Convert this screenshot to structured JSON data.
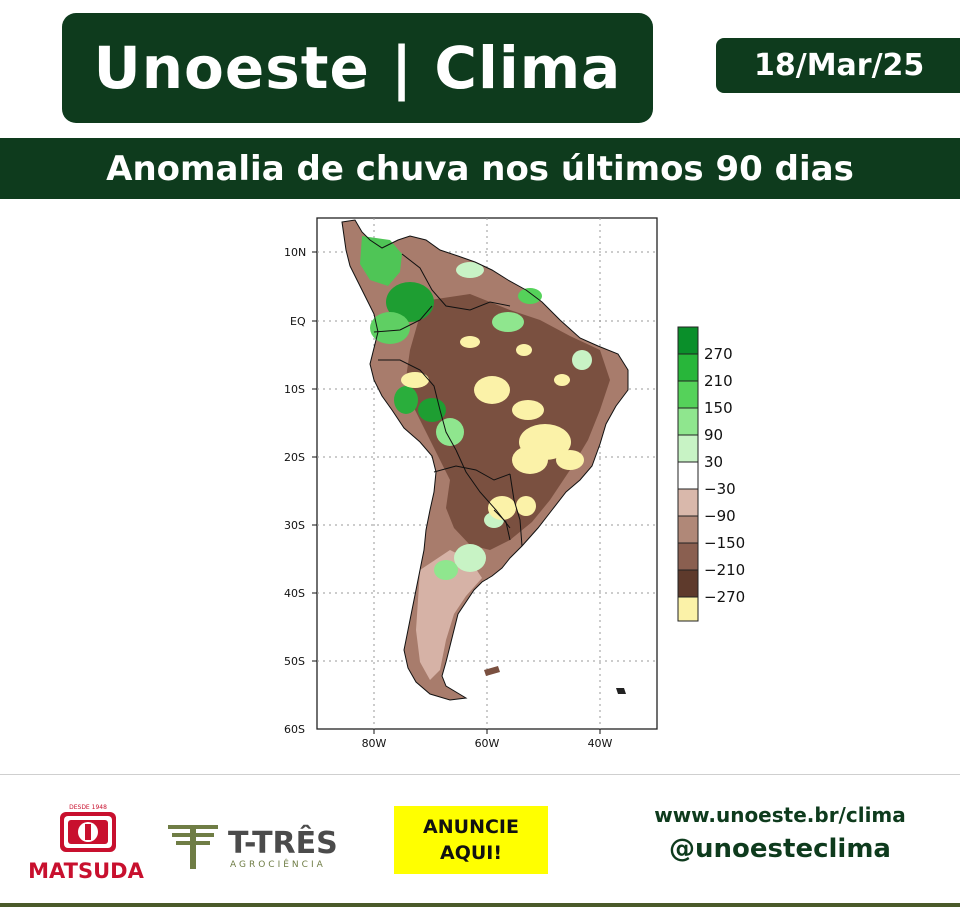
{
  "header": {
    "title": "Unoeste | Clima",
    "date": "18/Mar/25",
    "subtitle": "Anomalia de chuva nos últimos 90 dias"
  },
  "map": {
    "lat_labels": [
      "10N",
      "EQ",
      "10S",
      "20S",
      "30S",
      "40S",
      "50S",
      "60S"
    ],
    "lon_labels": [
      "80W",
      "60W",
      "40W"
    ],
    "legend": {
      "labels": [
        "270",
        "210",
        "150",
        "90",
        "30",
        "−30",
        "−90",
        "−150",
        "−210",
        "−270"
      ],
      "colors": [
        "#0a8f2a",
        "#28b63a",
        "#55d25a",
        "#8fe68e",
        "#c8f3c5",
        "#ffffff",
        "#d9b8ab",
        "#b08878",
        "#8a5f50",
        "#5e3a2c",
        "#fbf2a8"
      ]
    }
  },
  "footer": {
    "matsuda_name": "MATSUDA",
    "matsuda_since": "DESDE 1948",
    "ttres_name": "T-TRÊS",
    "ttres_sub": "AGROCIÊNCIA",
    "ad_line1": "ANUNCIE",
    "ad_line2": "AQUI!",
    "website": "www.unoeste.br/clima",
    "handle": "@unoesteclima"
  }
}
